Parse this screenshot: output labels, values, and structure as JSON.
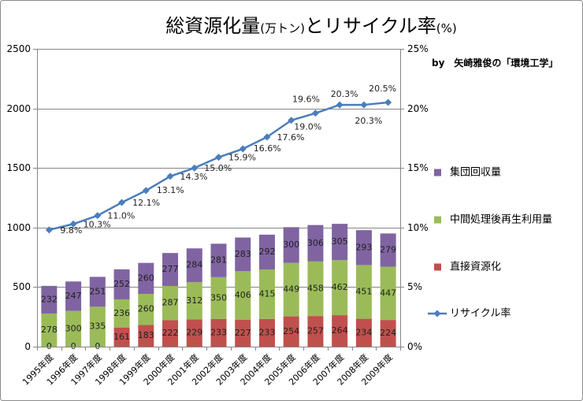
{
  "chart_data": {
    "type": "bar",
    "stacked": true,
    "title": "総資源化量(万トン)とリサイクル率(%)",
    "credit": "by　矢崎雅俊の「環境工学」",
    "categories": [
      "1995年度",
      "1996年度",
      "1997年度",
      "1998年度",
      "1999年度",
      "2000年度",
      "2001年度",
      "2002年度",
      "2003年度",
      "2004年度",
      "2005年度",
      "2006年度",
      "2007年度",
      "2008年度",
      "2009年度"
    ],
    "y_left": {
      "ylim": [
        0,
        2500
      ],
      "ticks": [
        "0",
        "500",
        "1000",
        "1500",
        "2000",
        "2500"
      ]
    },
    "y_right": {
      "ylim": [
        0,
        25
      ],
      "ticks": [
        "0%",
        "5%",
        "10%",
        "15%",
        "20%",
        "25%"
      ]
    },
    "grid": true,
    "legend": "right",
    "series": [
      {
        "name": "直接資源化",
        "type": "bar",
        "axis": "left",
        "color": "#C0504D",
        "values": [
          0,
          0,
          0,
          161,
          183,
          222,
          229,
          233,
          227,
          233,
          254,
          257,
          264,
          234,
          224
        ]
      },
      {
        "name": "中間処理後再生利用量",
        "type": "bar",
        "axis": "left",
        "color": "#9BBB59",
        "values": [
          278,
          300,
          335,
          236,
          260,
          287,
          312,
          350,
          406,
          415,
          449,
          458,
          462,
          451,
          447
        ]
      },
      {
        "name": "集団回収量",
        "type": "bar",
        "axis": "left",
        "color": "#8064A2",
        "values": [
          232,
          247,
          251,
          252,
          260,
          277,
          284,
          281,
          283,
          292,
          300,
          306,
          305,
          293,
          279
        ]
      },
      {
        "name": "リサイクル率",
        "type": "line",
        "axis": "right",
        "color": "#4A7EBB",
        "values": [
          9.8,
          10.3,
          11.0,
          12.1,
          13.1,
          14.3,
          15.0,
          15.9,
          16.6,
          17.6,
          19.0,
          19.6,
          20.3,
          20.3,
          20.5
        ],
        "labels": [
          "9.8%",
          "10.3%",
          "11.0%",
          "12.1%",
          "13.1%",
          "14.3%",
          "15.0%",
          "15.9%",
          "16.6%",
          "17.6%",
          "19.0%",
          "19.6%",
          "20.3%",
          "20.3%",
          "20.5%"
        ]
      }
    ]
  }
}
